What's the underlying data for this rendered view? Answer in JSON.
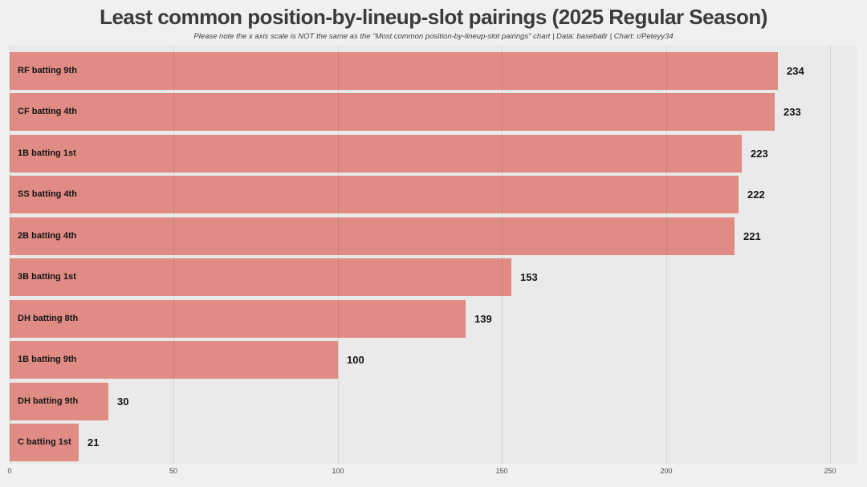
{
  "title": "Least common position-by-lineup-slot pairings (2025 Regular Season)",
  "subtitle": "Please note the x axis scale is NOT the same as the \"Most common position-by-lineup-slot pairings\" chart | Data: baseballr | Chart: r/Peteyy34",
  "colors": {
    "bar": "#E08C85",
    "panel_background": "#EAEAEA",
    "page_background": "#F0F0F0",
    "gridline": "rgba(0,0,0,0.09)",
    "title_text": "#3B3B3B",
    "label_text": "#141414",
    "tick_text": "#4D4D4D"
  },
  "chart_data": {
    "type": "bar",
    "orientation": "horizontal",
    "title": "Least common position-by-lineup-slot pairings (2025 Regular Season)",
    "subtitle": "Please note the x axis scale is NOT the same as the \"Most common position-by-lineup-slot pairings\" chart | Data: baseballr | Chart: r/Peteyy34",
    "categories": [
      "RF batting 9th",
      "CF batting 4th",
      "1B batting 1st",
      "SS batting 4th",
      "2B batting 4th",
      "3B batting 1st",
      "DH batting 8th",
      "1B batting 9th",
      "DH batting 9th",
      "C batting 1st"
    ],
    "values": [
      234,
      233,
      223,
      222,
      221,
      153,
      139,
      100,
      30,
      21
    ],
    "value_label_position": "right-of-bar-end",
    "category_label_position": "inside-bar-left",
    "xlabel": "",
    "ylabel": "",
    "xlim": [
      0,
      258
    ],
    "xticks": [
      0,
      50,
      100,
      150,
      200,
      250
    ],
    "grid": "vertical-major-only",
    "legend": false
  }
}
